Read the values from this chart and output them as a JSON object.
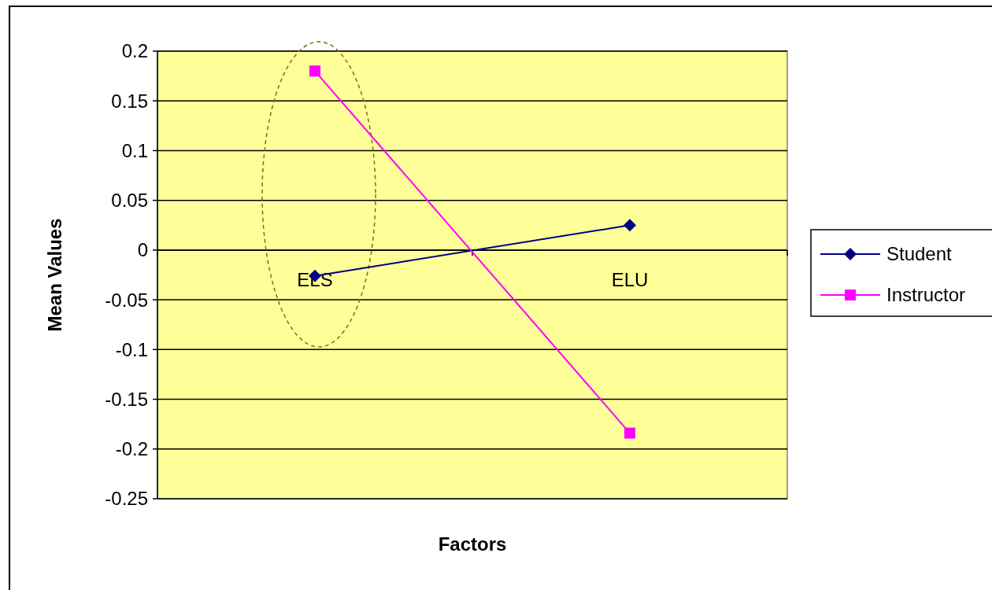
{
  "chart_data": {
    "type": "line",
    "xlabel": "Factors",
    "ylabel": "Mean Values",
    "categories": [
      "ELS",
      "ELU"
    ],
    "series": [
      {
        "name": "Student",
        "color": "#000080",
        "values": [
          -0.026,
          0.025
        ],
        "marker": "diamond"
      },
      {
        "name": "Instructor",
        "color": "#ff00ff",
        "values": [
          0.18,
          -0.184
        ],
        "marker": "square"
      }
    ],
    "ylim": [
      -0.25,
      0.2
    ],
    "yticks": [
      -0.25,
      -0.2,
      -0.15,
      -0.1,
      -0.05,
      0,
      0.05,
      0.1,
      0.15,
      0.2
    ],
    "grid": "y",
    "legend": "right"
  }
}
